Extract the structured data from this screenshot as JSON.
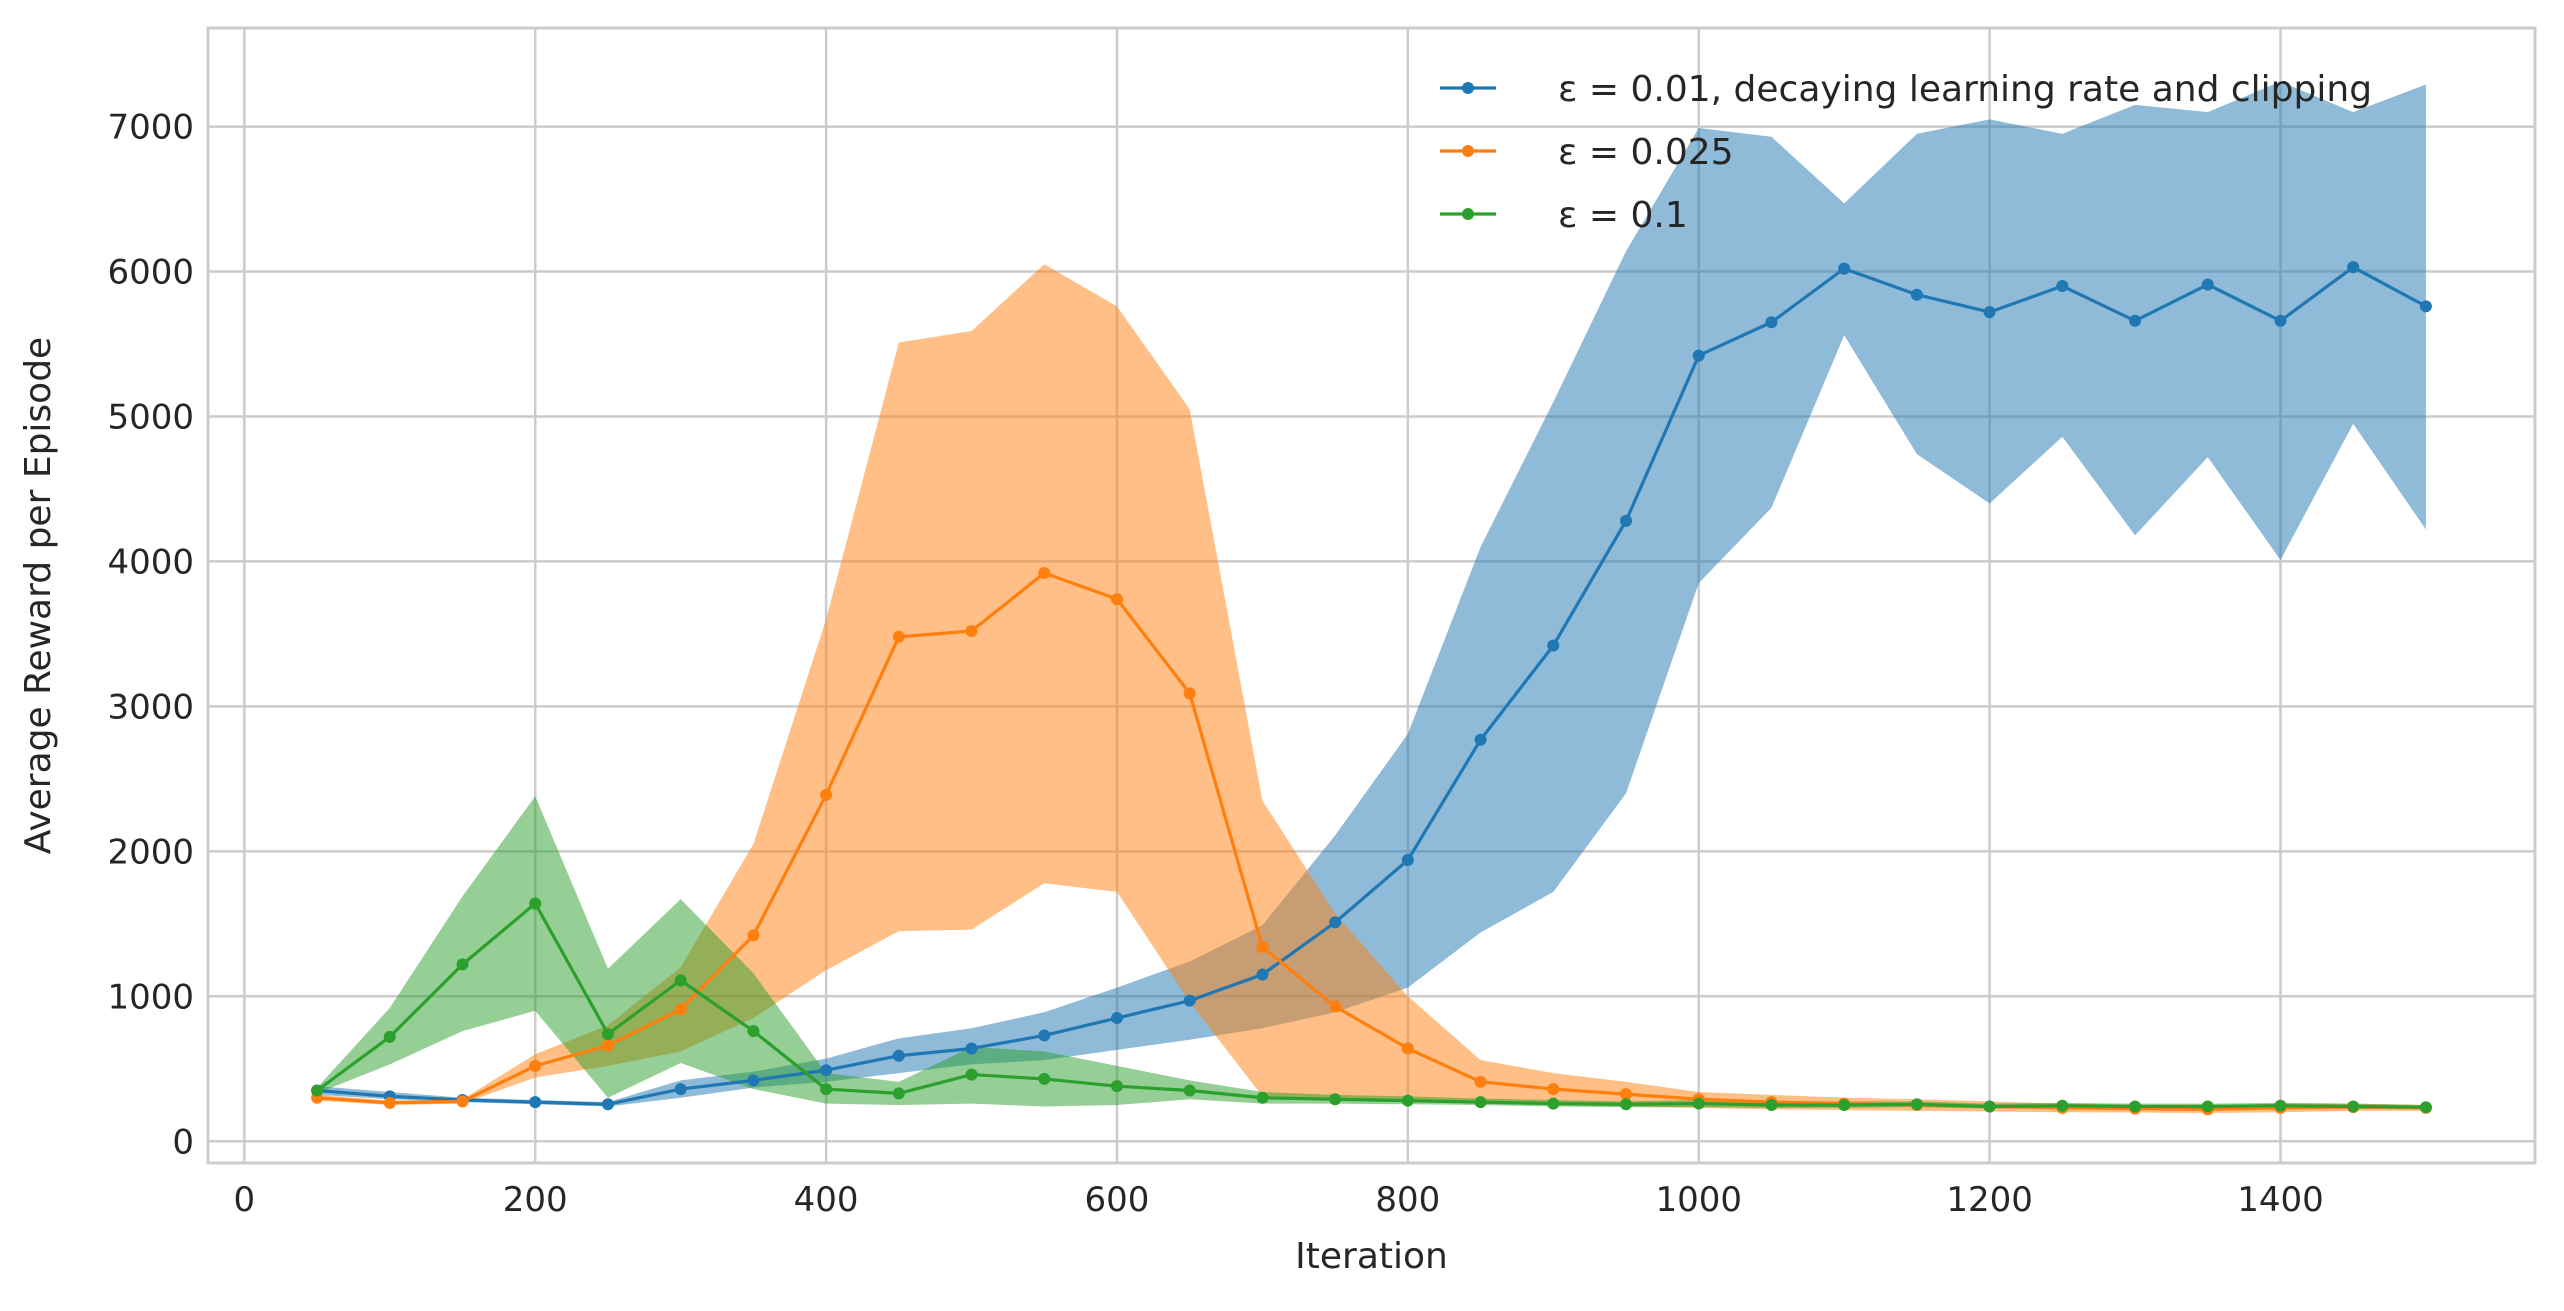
{
  "chart_data": {
    "type": "line",
    "title": "",
    "xlabel": "Iteration",
    "ylabel": "Average Reward per Episode",
    "xlim": [
      -25,
      1575
    ],
    "ylim": [
      -150,
      7680
    ],
    "xticks": [
      0,
      200,
      400,
      600,
      800,
      1000,
      1200,
      1400
    ],
    "xtick_labels": [
      "0",
      "200",
      "400",
      "600",
      "800",
      "1000",
      "1200",
      "1400"
    ],
    "yticks": [
      0,
      1000,
      2000,
      3000,
      4000,
      5000,
      6000,
      7000
    ],
    "ytick_labels": [
      "0",
      "1000",
      "2000",
      "3000",
      "4000",
      "5000",
      "6000",
      "7000"
    ],
    "grid": true,
    "legend_position": "top-right",
    "x": [
      50,
      100,
      150,
      200,
      250,
      300,
      350,
      400,
      450,
      500,
      550,
      600,
      650,
      700,
      750,
      800,
      850,
      900,
      950,
      1000,
      1050,
      1100,
      1150,
      1200,
      1250,
      1300,
      1350,
      1400,
      1450,
      1500
    ],
    "series": [
      {
        "name": "ε = 0.01, decaying learning rate and clipping",
        "color": "#1f77b4",
        "values": [
          350,
          310,
          285,
          270,
          255,
          360,
          420,
          490,
          590,
          640,
          730,
          850,
          970,
          1150,
          1510,
          1940,
          2770,
          3420,
          4280,
          5420,
          5650,
          6020,
          5840,
          5720,
          5900,
          5660,
          5910,
          5660,
          6030,
          5760
        ],
        "lower": [
          320,
          290,
          270,
          255,
          240,
          300,
          370,
          410,
          470,
          530,
          560,
          630,
          700,
          780,
          890,
          1060,
          1440,
          1720,
          2400,
          3850,
          4370,
          5560,
          4740,
          4400,
          4860,
          4180,
          4720,
          4010,
          4950,
          4220
        ],
        "upper": [
          380,
          340,
          300,
          285,
          270,
          420,
          480,
          570,
          710,
          780,
          890,
          1060,
          1240,
          1490,
          2110,
          2810,
          4100,
          5100,
          6140,
          6990,
          6930,
          6470,
          6950,
          7050,
          6950,
          7150,
          7100,
          7310,
          7100,
          7290
        ]
      },
      {
        "name": "ε = 0.025",
        "color": "#ff7f0e",
        "values": [
          300,
          265,
          275,
          520,
          660,
          910,
          1420,
          2390,
          3480,
          3520,
          3920,
          3740,
          3090,
          1340,
          930,
          640,
          410,
          360,
          325,
          290,
          270,
          260,
          250,
          240,
          230,
          225,
          220,
          230,
          235,
          230
        ],
        "lower": [
          280,
          250,
          260,
          440,
          520,
          620,
          850,
          1180,
          1450,
          1460,
          1780,
          1720,
          960,
          310,
          290,
          280,
          260,
          250,
          240,
          230,
          220,
          215,
          210,
          205,
          200,
          198,
          195,
          200,
          210,
          210
        ],
        "upper": [
          320,
          280,
          290,
          600,
          800,
          1200,
          2050,
          3600,
          5510,
          5590,
          6050,
          5760,
          5050,
          2350,
          1570,
          1000,
          560,
          470,
          410,
          340,
          320,
          300,
          290,
          275,
          260,
          252,
          245,
          260,
          260,
          250
        ]
      },
      {
        "name": "ε = 0.1",
        "color": "#2ca02c",
        "values": [
          350,
          720,
          1220,
          1640,
          740,
          1110,
          760,
          360,
          330,
          460,
          430,
          380,
          350,
          300,
          290,
          280,
          270,
          260,
          255,
          260,
          250,
          250,
          255,
          240,
          245,
          240,
          240,
          245,
          240,
          235
        ],
        "lower": [
          330,
          530,
          760,
          900,
          300,
          540,
          360,
          260,
          250,
          260,
          240,
          250,
          290,
          260,
          260,
          255,
          250,
          240,
          235,
          235,
          230,
          230,
          235,
          225,
          228,
          225,
          225,
          228,
          225,
          225
        ],
        "upper": [
          370,
          920,
          1690,
          2380,
          1190,
          1670,
          1160,
          470,
          410,
          650,
          620,
          520,
          420,
          340,
          320,
          310,
          295,
          285,
          275,
          285,
          275,
          275,
          275,
          260,
          265,
          260,
          260,
          265,
          260,
          250
        ]
      }
    ]
  }
}
